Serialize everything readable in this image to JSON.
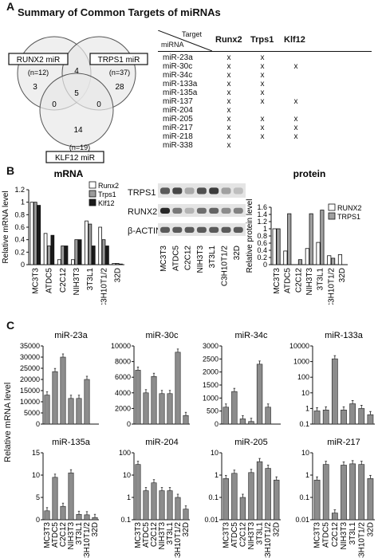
{
  "panelA": {
    "letter": "A",
    "title": "Summary of Common Targets of miRNAs",
    "venn": {
      "labels": {
        "runx2": "RUNX2 miR",
        "trps1": "TRPS1 miR",
        "klf12": "KLF12 miR"
      },
      "counts": {
        "runx2": "(n=12)",
        "trps1": "(n=37)",
        "klf12": "(n=19)"
      },
      "regions": {
        "runx2_only": "3",
        "runx2_trps1": "4",
        "trps1_only": "28",
        "runx2_klf12": "0",
        "all": "5",
        "trps1_klf12": "0",
        "klf12_only": "14"
      }
    },
    "table": {
      "header_target": "Target",
      "header_mirna": "miRNA",
      "columns": [
        "Runx2",
        "Trps1",
        "Klf12"
      ],
      "mark": "x",
      "rows": [
        {
          "mirna": "miR-23a",
          "hits": [
            true,
            true,
            false
          ]
        },
        {
          "mirna": "miR-30c",
          "hits": [
            true,
            true,
            true
          ]
        },
        {
          "mirna": "miR-34c",
          "hits": [
            true,
            true,
            false
          ]
        },
        {
          "mirna": "miR-133a",
          "hits": [
            true,
            true,
            false
          ]
        },
        {
          "mirna": "miR-135a",
          "hits": [
            true,
            true,
            false
          ]
        },
        {
          "mirna": "miR-137",
          "hits": [
            true,
            true,
            true
          ]
        },
        {
          "mirna": "miR-204",
          "hits": [
            true,
            false,
            false
          ]
        },
        {
          "mirna": "miR-205",
          "hits": [
            true,
            true,
            true
          ]
        },
        {
          "mirna": "miR-217",
          "hits": [
            true,
            true,
            true
          ]
        },
        {
          "mirna": "miR-218",
          "hits": [
            true,
            true,
            true
          ]
        },
        {
          "mirna": "miR-338",
          "hits": [
            true,
            false,
            false
          ]
        }
      ]
    }
  },
  "panelB": {
    "letter": "B",
    "blot": {
      "bands": [
        "TRPS1",
        "RUNX2",
        "β-ACTIN"
      ],
      "lanes": [
        "MC3T3",
        "ATDC5",
        "C2C12",
        "NIH3T3",
        "3T3L1",
        "C3H10T1/2",
        "32D"
      ]
    }
  },
  "panelC": {
    "letter": "C",
    "ylabel": "Relative mRNA level"
  },
  "chart_data": [
    {
      "type": "bar",
      "title": "mRNA",
      "ylabel": "Relative mRNA level",
      "categories": [
        "MC3T3",
        "ATDC5",
        "C2C12",
        "NIH3T3",
        "3T3L1",
        "C3H10T1/2",
        "32D"
      ],
      "ylim": [
        0,
        1.2
      ],
      "yticks": [
        "0",
        "0.2",
        "0.4",
        "0.6",
        "0.8",
        "1",
        "1.2"
      ],
      "legend": "top-right",
      "series": [
        {
          "name": "Runx2",
          "color": "#ffffff",
          "values": [
            1.0,
            0.5,
            0.08,
            0.08,
            0.7,
            0.6,
            0.02
          ]
        },
        {
          "name": "Trps1",
          "color": "#9a9a9a",
          "values": [
            1.0,
            0.3,
            0.3,
            0.4,
            0.65,
            0.4,
            0.02
          ]
        },
        {
          "name": "Klf12",
          "color": "#1a1a1a",
          "values": [
            0.95,
            0.47,
            0.3,
            0.4,
            0.3,
            0.3,
            0.01
          ]
        }
      ]
    },
    {
      "type": "bar",
      "title": "protein",
      "ylabel": "Relative protein level",
      "categories": [
        "MC3T3",
        "ATDC5",
        "C2C12",
        "NIH3T3",
        "3T3L1",
        "C3H10T1/2",
        "32D"
      ],
      "ylim": [
        0,
        1.6
      ],
      "yticks": [
        "0",
        "0.2",
        "0.4",
        "0.6",
        "0.8",
        "1",
        "1.2",
        "1.4",
        "1.6"
      ],
      "legend": "top-right",
      "series": [
        {
          "name": "RUNX2",
          "color": "#ffffff",
          "values": [
            1.0,
            0.38,
            0.0,
            0.45,
            0.62,
            0.25,
            0.28
          ]
        },
        {
          "name": "TRPS1",
          "color": "#a0a0a0",
          "values": [
            1.0,
            1.42,
            0.14,
            1.42,
            1.52,
            0.18,
            0.0
          ]
        }
      ]
    },
    {
      "type": "bar",
      "title": "miR-23a",
      "scale": "linear",
      "ylim": [
        0,
        35000
      ],
      "yticks": [
        "0",
        "5000",
        "10000",
        "15000",
        "20000",
        "25000",
        "30000",
        "35000"
      ],
      "categories": [
        "MC3T3",
        "ATDC5",
        "C2C12",
        "NIH3T3",
        "3T3L1",
        "C3H10T1/2",
        "32D"
      ],
      "values": [
        13000,
        23500,
        30000,
        11500,
        11500,
        20000,
        0
      ]
    },
    {
      "type": "bar",
      "title": "miR-30c",
      "scale": "linear",
      "ylim": [
        0,
        10000
      ],
      "yticks": [
        "0",
        "2000",
        "4000",
        "6000",
        "8000",
        "10000"
      ],
      "categories": [
        "MC3T3",
        "ATDC5",
        "C2C12",
        "NIH3T3",
        "3T3L1",
        "C3H10T1/2",
        "32D"
      ],
      "values": [
        6900,
        4000,
        6100,
        3900,
        3900,
        9200,
        1100
      ]
    },
    {
      "type": "bar",
      "title": "miR-34c",
      "scale": "linear",
      "ylim": [
        0,
        3000
      ],
      "yticks": [
        "0",
        "500",
        "1000",
        "1500",
        "2000",
        "2500",
        "3000"
      ],
      "categories": [
        "MC3T3",
        "ATDC5",
        "C2C12",
        "NIH3T3",
        "3T3L1",
        "C3H10T1/2",
        "32D"
      ],
      "values": [
        650,
        1250,
        200,
        100,
        2300,
        650,
        0
      ]
    },
    {
      "type": "bar",
      "title": "miR-133a",
      "scale": "log",
      "ylim": [
        0.1,
        10000
      ],
      "yticks": [
        "0.1",
        "1",
        "10",
        "100",
        "1000",
        "10000"
      ],
      "categories": [
        "MC3T3",
        "ATDC5",
        "C2C12",
        "NIH3T3",
        "3T3L1",
        "C3H10T1/2",
        "32D"
      ],
      "values": [
        0.7,
        0.8,
        1500,
        0.8,
        2.0,
        1.0,
        0.4
      ]
    },
    {
      "type": "bar",
      "title": "miR-135a",
      "scale": "linear",
      "ylim": [
        0,
        15
      ],
      "yticks": [
        "0",
        "5",
        "10",
        "15"
      ],
      "categories": [
        "MC3T3",
        "ATDC5",
        "C2C12",
        "NIH3T3",
        "3T3L1",
        "C3H10T1/2",
        "32D"
      ],
      "values": [
        2,
        9.5,
        3,
        10.5,
        1.2,
        1.1,
        0.5
      ]
    },
    {
      "type": "bar",
      "title": "miR-204",
      "scale": "log",
      "ylim": [
        0.1,
        100
      ],
      "yticks": [
        "0.1",
        "1",
        "10",
        "100"
      ],
      "categories": [
        "MC3T3",
        "ATDC5",
        "C2C12",
        "NIH3T3",
        "3T3L1",
        "C3H10T1/2",
        "32D"
      ],
      "values": [
        30,
        2,
        4.5,
        2,
        2,
        1,
        0.3
      ]
    },
    {
      "type": "bar",
      "title": "miR-205",
      "scale": "log",
      "ylim": [
        0.01,
        10
      ],
      "yticks": [
        "0.01",
        "0.1",
        "1",
        "10"
      ],
      "categories": [
        "MC3T3",
        "ATDC5",
        "C2C12",
        "NIH3T3",
        "3T3L1",
        "C3H10T1/2",
        "32D"
      ],
      "values": [
        0.7,
        1.2,
        0.1,
        1.3,
        4.0,
        2.0,
        0.6
      ]
    },
    {
      "type": "bar",
      "title": "miR-217",
      "scale": "log",
      "ylim": [
        0.01,
        10
      ],
      "yticks": [
        "0.01",
        "0.1",
        "1",
        "10"
      ],
      "categories": [
        "MC3T3",
        "ATDC5",
        "C2C12",
        "NIH3T3",
        "3T3L1",
        "C3H10T1/2",
        "32D"
      ],
      "values": [
        0.6,
        3.0,
        0.02,
        2.8,
        3.2,
        3.0,
        0.7
      ]
    }
  ]
}
